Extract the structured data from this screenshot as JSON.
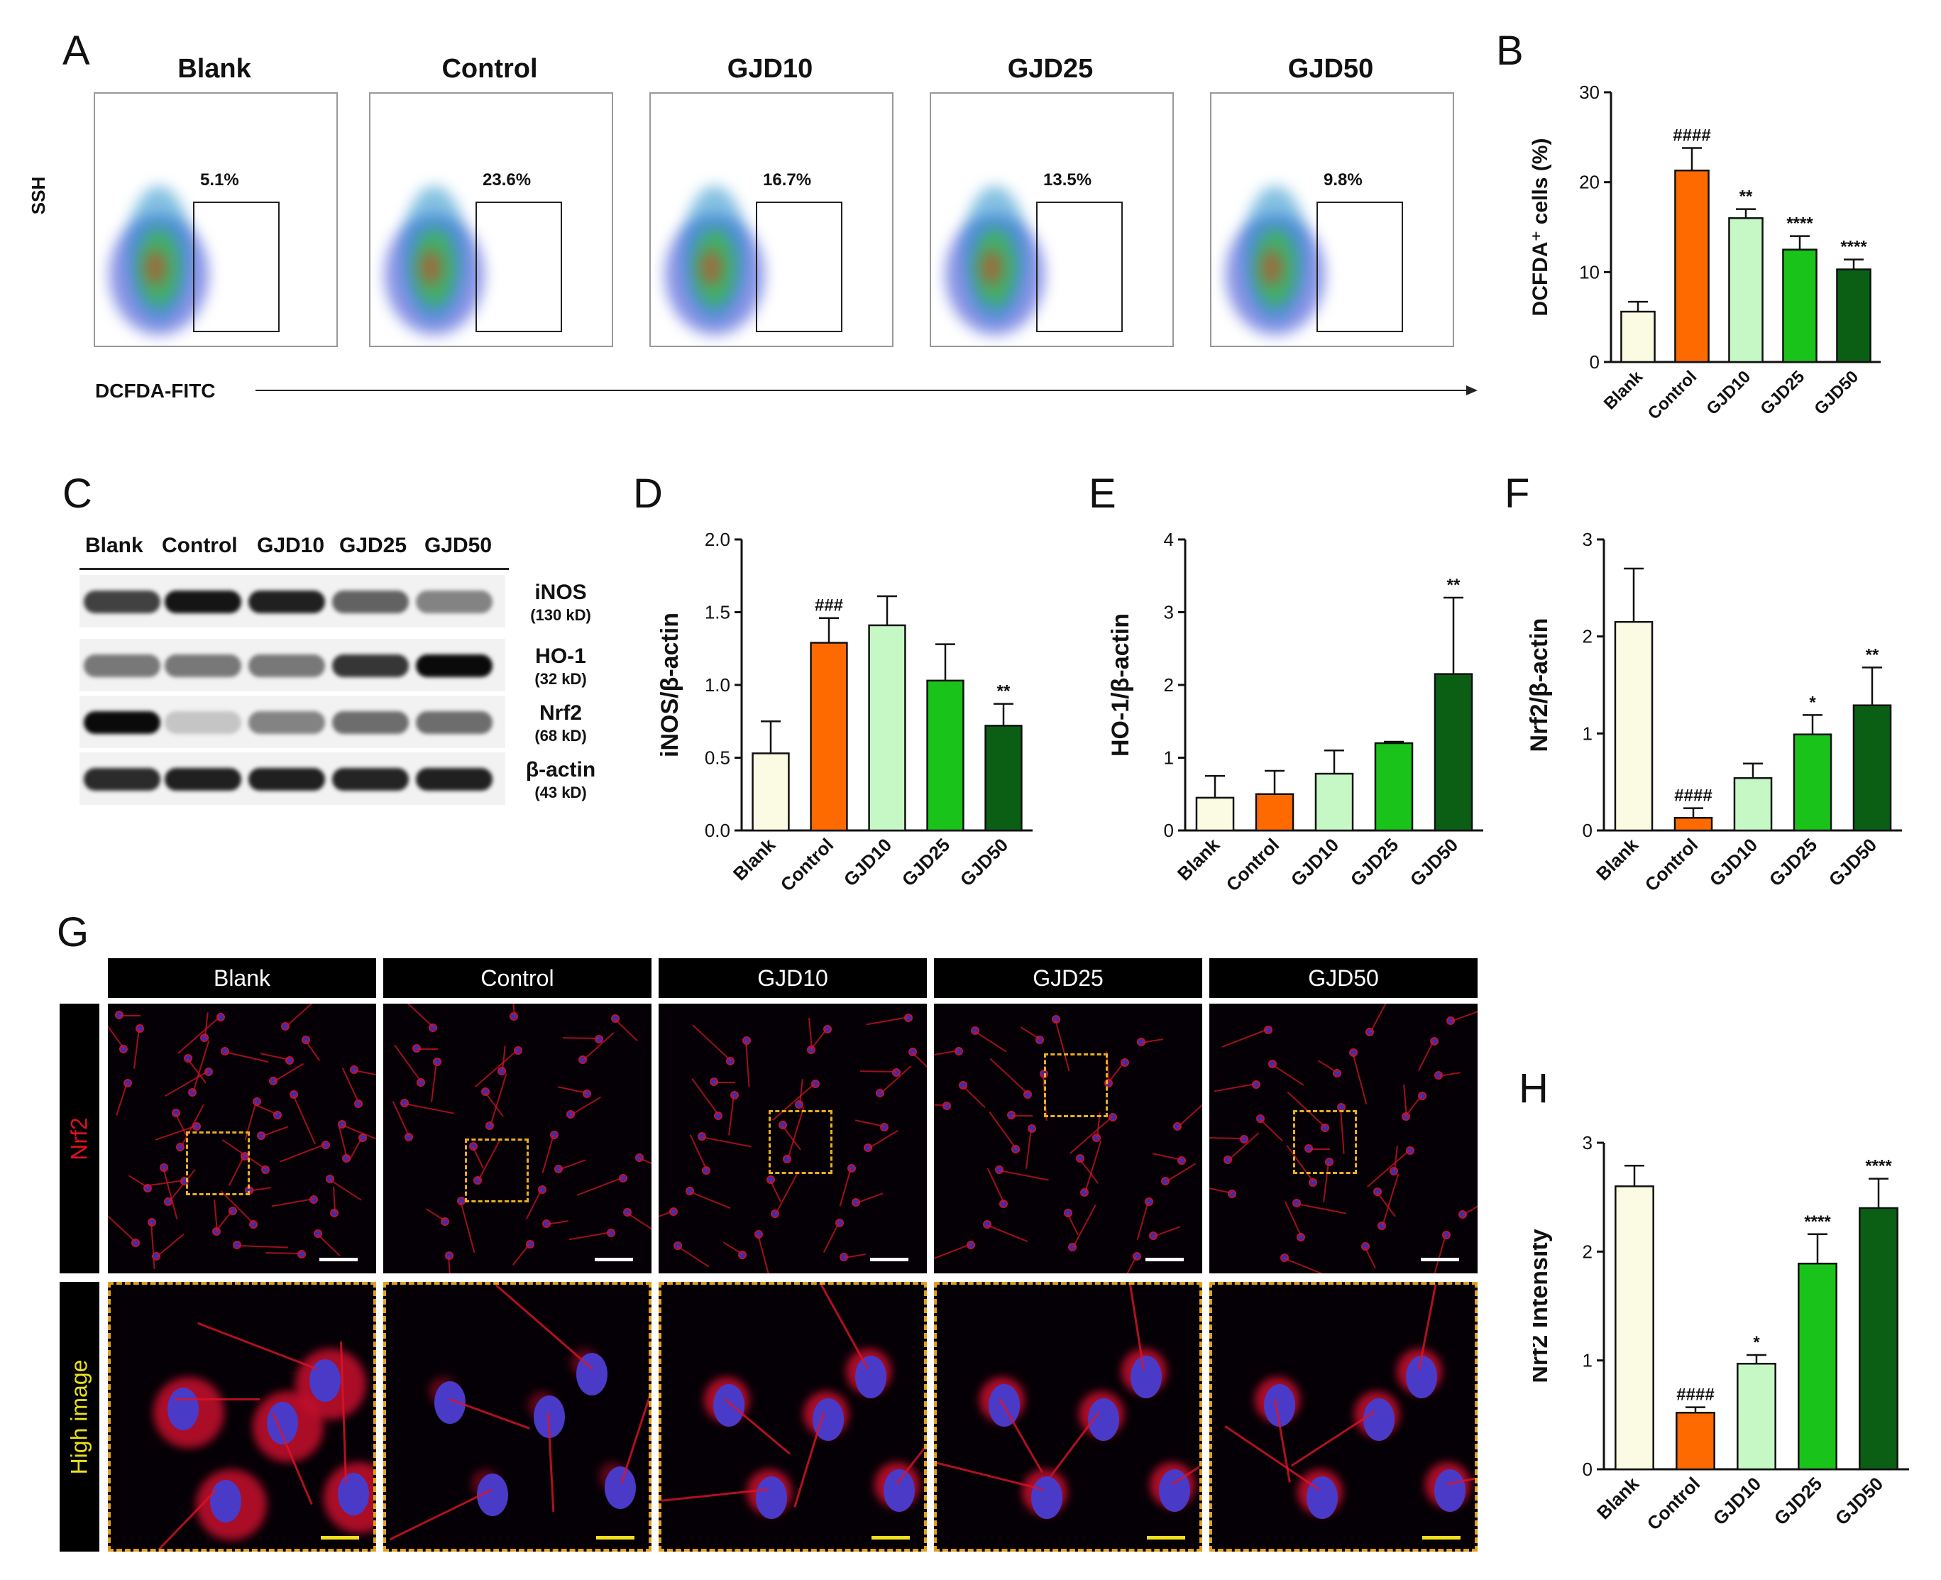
{
  "panel_letters": {
    "A": "A",
    "B": "B",
    "C": "C",
    "D": "D",
    "E": "E",
    "F": "F",
    "G": "G",
    "H": "H"
  },
  "flow": {
    "y_axis_label": "SSH",
    "x_axis_label": "DCFDA-FITC",
    "groups": [
      {
        "title": "Blank",
        "percent": "5.1%"
      },
      {
        "title": "Control",
        "percent": "23.6%"
      },
      {
        "title": "GJD10",
        "percent": "16.7%"
      },
      {
        "title": "GJD25",
        "percent": "13.5%"
      },
      {
        "title": "GJD50",
        "percent": "9.8%"
      }
    ]
  },
  "western": {
    "lane_headers": [
      "Blank",
      "Control",
      "GJD10",
      "GJD25",
      "GJD50"
    ],
    "proteins": [
      {
        "name": "iNOS",
        "kd": "(130 kD)",
        "intensity": [
          0.75,
          0.95,
          0.9,
          0.6,
          0.45
        ]
      },
      {
        "name": "HO-1",
        "kd": "(32 kD)",
        "intensity": [
          0.5,
          0.5,
          0.5,
          0.8,
          1.0
        ]
      },
      {
        "name": "Nrf2",
        "kd": "(68 kD)",
        "intensity": [
          1.0,
          0.15,
          0.45,
          0.55,
          0.55
        ]
      },
      {
        "name": "β-actin",
        "kd": "(43 kD)",
        "intensity": [
          0.85,
          0.9,
          0.9,
          0.88,
          0.9
        ]
      }
    ]
  },
  "colors": {
    "Blank": "#fbfbe3",
    "Control": "#ff6a00",
    "GJD10": "#c6f8c6",
    "GJD25": "#19c319",
    "GJD50": "#0a5f14"
  },
  "if_panel": {
    "headers": [
      "Blank",
      "Control",
      "GJD10",
      "GJD25",
      "GJD50"
    ],
    "row_labels": [
      "Nrf2",
      "High image"
    ]
  },
  "chart_data": [
    {
      "id": "B",
      "type": "bar",
      "categories": [
        "Blank",
        "Control",
        "GJD10",
        "GJD25",
        "GJD50"
      ],
      "values": [
        5.6,
        21.3,
        16.0,
        12.5,
        10.3
      ],
      "errors": [
        1.1,
        2.5,
        1.0,
        1.5,
        1.1
      ],
      "annotations": [
        "",
        "####",
        "**",
        "****",
        "****"
      ],
      "ylabel": "DCFDA⁺ cells (%)",
      "ylim": [
        0,
        30
      ],
      "yticks": [
        0,
        10,
        20,
        30
      ]
    },
    {
      "id": "D",
      "type": "bar",
      "categories": [
        "Blank",
        "Control",
        "GJD10",
        "GJD25",
        "GJD50"
      ],
      "values": [
        0.53,
        1.29,
        1.41,
        1.03,
        0.72
      ],
      "errors": [
        0.22,
        0.17,
        0.2,
        0.25,
        0.15
      ],
      "annotations": [
        "",
        "###",
        "",
        "",
        "**"
      ],
      "ylabel": "iNOS/β-actin",
      "ylim": [
        0,
        2.0
      ],
      "yticks": [
        0.0,
        0.5,
        1.0,
        1.5,
        2.0
      ],
      "ytick_labels": [
        "0.0",
        "0.5",
        "1.0",
        "1.5",
        "2.0"
      ]
    },
    {
      "id": "E",
      "type": "bar",
      "categories": [
        "Blank",
        "Control",
        "GJD10",
        "GJD25",
        "GJD50"
      ],
      "values": [
        0.45,
        0.5,
        0.78,
        1.2,
        2.15
      ],
      "errors": [
        0.3,
        0.32,
        0.32,
        0.02,
        1.05
      ],
      "annotations": [
        "",
        "",
        "",
        "",
        "**"
      ],
      "ylabel": "HO-1/β-actin",
      "ylim": [
        0,
        4
      ],
      "yticks": [
        0,
        1,
        2,
        3,
        4
      ]
    },
    {
      "id": "F",
      "type": "bar",
      "categories": [
        "Blank",
        "Control",
        "GJD10",
        "GJD25",
        "GJD50"
      ],
      "values": [
        2.15,
        0.13,
        0.54,
        0.99,
        1.29
      ],
      "errors": [
        0.55,
        0.1,
        0.15,
        0.2,
        0.39
      ],
      "annotations": [
        "",
        "####",
        "",
        "*",
        "**"
      ],
      "ylabel": "Nrf2/β-actin",
      "ylim": [
        0,
        3
      ],
      "yticks": [
        0,
        1,
        2,
        3
      ]
    },
    {
      "id": "H",
      "type": "bar",
      "categories": [
        "Blank",
        "Control",
        "GJD10",
        "GJD25",
        "GJD50"
      ],
      "values": [
        2.6,
        0.52,
        0.97,
        1.89,
        2.4
      ],
      "errors": [
        0.19,
        0.05,
        0.08,
        0.27,
        0.27
      ],
      "annotations": [
        "",
        "####",
        "*",
        "****",
        "****"
      ],
      "ylabel": "Nrf2 Intensity",
      "ylim": [
        0,
        3
      ],
      "yticks": [
        0,
        1,
        2,
        3
      ]
    }
  ]
}
